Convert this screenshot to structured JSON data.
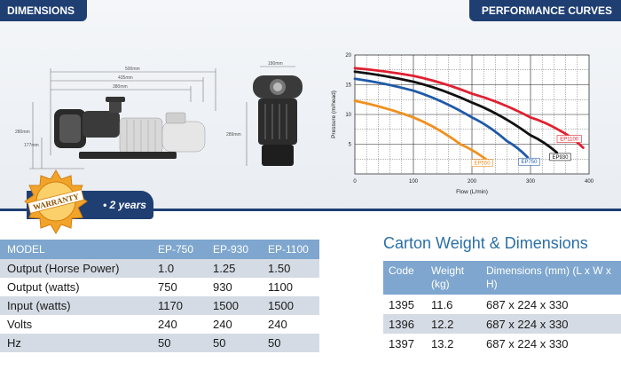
{
  "header": {
    "left_label": "DIMENSIONS",
    "right_label": "PERFORMANCE CURVES"
  },
  "drawing": {
    "dim_total": "500mm",
    "dim_mid": "435mm",
    "dim_inner": "380mm",
    "dim_height": "280mm",
    "dim_base": "177mm",
    "dim_side_width": "180mm",
    "dim_side_height": "289mm"
  },
  "warranty": {
    "seal_label": "WARRANTY",
    "period": "• 2 years"
  },
  "chart_data": {
    "type": "line",
    "xlabel": "Flow (L/min)",
    "ylabel": "Pressure (m/head)",
    "xlim": [
      0,
      400
    ],
    "ylim": [
      0,
      20
    ],
    "x_ticks": [
      "0",
      "100",
      "200",
      "300",
      "400"
    ],
    "y_ticks": [
      "5",
      "10",
      "15",
      "20"
    ],
    "grid": true,
    "series": [
      {
        "name": "EP1100",
        "color": "#e02030",
        "points": [
          [
            0,
            17.8
          ],
          [
            100,
            16.5
          ],
          [
            200,
            13.5
          ],
          [
            300,
            9.5
          ],
          [
            350,
            7.3
          ],
          [
            390,
            4.4
          ]
        ]
      },
      {
        "name": "EP930",
        "color": "#111111",
        "points": [
          [
            0,
            17.2
          ],
          [
            100,
            15.5
          ],
          [
            200,
            12.0
          ],
          [
            300,
            6.5
          ],
          [
            345,
            3.6
          ]
        ]
      },
      {
        "name": "EP750",
        "color": "#1f5aa8",
        "points": [
          [
            0,
            16.0
          ],
          [
            100,
            14.0
          ],
          [
            200,
            9.5
          ],
          [
            260,
            5.5
          ],
          [
            295,
            2.8
          ]
        ]
      },
      {
        "name": "EP550",
        "color": "#f0901e",
        "points": [
          [
            0,
            12.3
          ],
          [
            100,
            9.5
          ],
          [
            180,
            5.0
          ],
          [
            230,
            2.0
          ]
        ]
      }
    ]
  },
  "model_table": {
    "headers": [
      "MODEL",
      "EP-750",
      "EP-930",
      "EP-1100"
    ],
    "rows": [
      [
        "Output (Horse Power)",
        "1.0",
        "1.25",
        "1.50"
      ],
      [
        "Output (watts)",
        "750",
        "930",
        "1100"
      ],
      [
        "Input (watts)",
        "1170",
        "1500",
        "1500"
      ],
      [
        "Volts",
        "240",
        "240",
        "240"
      ],
      [
        "Hz",
        "50",
        "50",
        "50"
      ]
    ]
  },
  "carton": {
    "title": "Carton Weight & Dimensions",
    "headers": [
      "Code",
      "Weight (kg)",
      "Dimensions (mm) (L x W x H)"
    ],
    "rows": [
      [
        "1395",
        "11.6",
        "687 x 224 x 330"
      ],
      [
        "1396",
        "12.2",
        "687 x 224 x 330"
      ],
      [
        "1397",
        "13.2",
        "687 x 224 x 330"
      ]
    ]
  }
}
